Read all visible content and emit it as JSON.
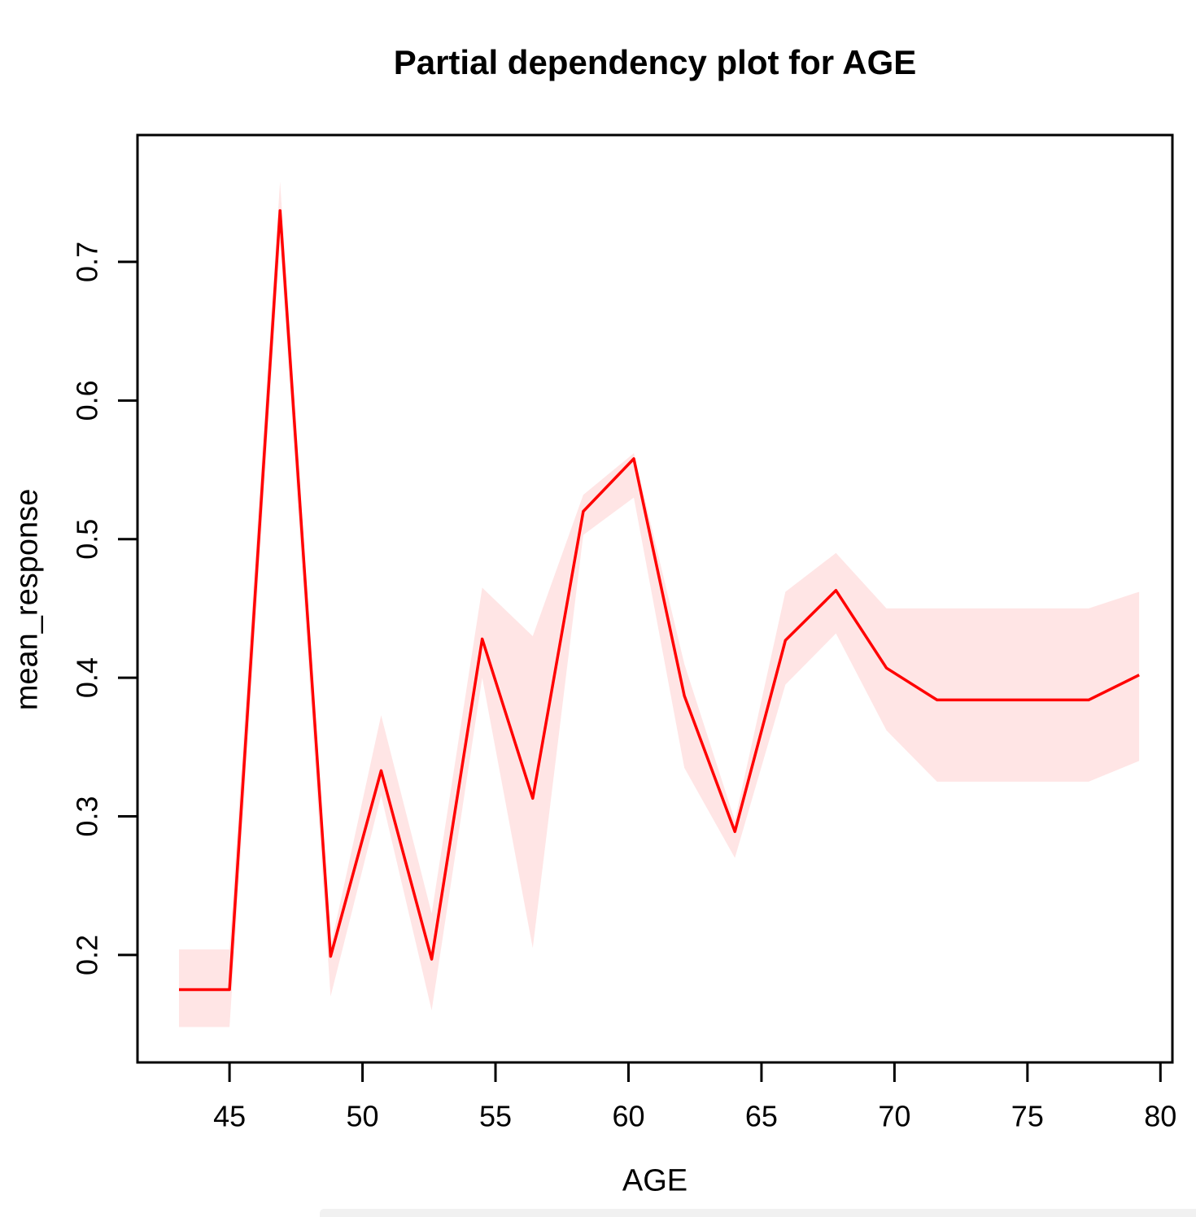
{
  "figure": {
    "title": "Partial dependency plot for AGE",
    "xlabel": "AGE",
    "ylabel": "mean_response"
  },
  "chart_data": {
    "type": "line",
    "title": "Partial dependency plot for AGE",
    "xlabel": "AGE",
    "ylabel": "mean_response",
    "x": [
      43.1,
      45.0,
      46.9,
      48.8,
      50.7,
      52.6,
      54.5,
      56.4,
      58.3,
      60.2,
      62.1,
      64.0,
      65.9,
      67.8,
      69.7,
      71.6,
      73.5,
      75.4,
      77.3,
      79.2
    ],
    "series": [
      {
        "name": "mean_response",
        "values": [
          0.175,
          0.175,
          0.737,
          0.199,
          0.333,
          0.197,
          0.428,
          0.313,
          0.52,
          0.558,
          0.387,
          0.289,
          0.427,
          0.463,
          0.407,
          0.384,
          0.384,
          0.384,
          0.384,
          0.402
        ]
      },
      {
        "name": "band_lower",
        "values": [
          0.148,
          0.148,
          0.715,
          0.17,
          0.315,
          0.16,
          0.4,
          0.205,
          0.503,
          0.53,
          0.335,
          0.27,
          0.395,
          0.432,
          0.362,
          0.325,
          0.325,
          0.325,
          0.325,
          0.34
        ]
      },
      {
        "name": "band_upper",
        "values": [
          0.204,
          0.204,
          0.758,
          0.206,
          0.373,
          0.23,
          0.465,
          0.43,
          0.532,
          0.562,
          0.41,
          0.297,
          0.462,
          0.49,
          0.45,
          0.45,
          0.45,
          0.45,
          0.45,
          0.462
        ]
      }
    ],
    "x_ticks": [
      45,
      50,
      55,
      60,
      65,
      70,
      75,
      80
    ],
    "y_ticks": [
      0.2,
      0.3,
      0.4,
      0.5,
      0.6,
      0.7
    ],
    "xlim": [
      41.54,
      80.45
    ],
    "ylim": [
      0.1225,
      0.7915
    ],
    "grid": false,
    "legend_position": "none",
    "colors": {
      "line": "#ff0000",
      "band": "rgba(255,0,0,0.10)",
      "axis": "#000000",
      "background": "#ffffff"
    }
  }
}
